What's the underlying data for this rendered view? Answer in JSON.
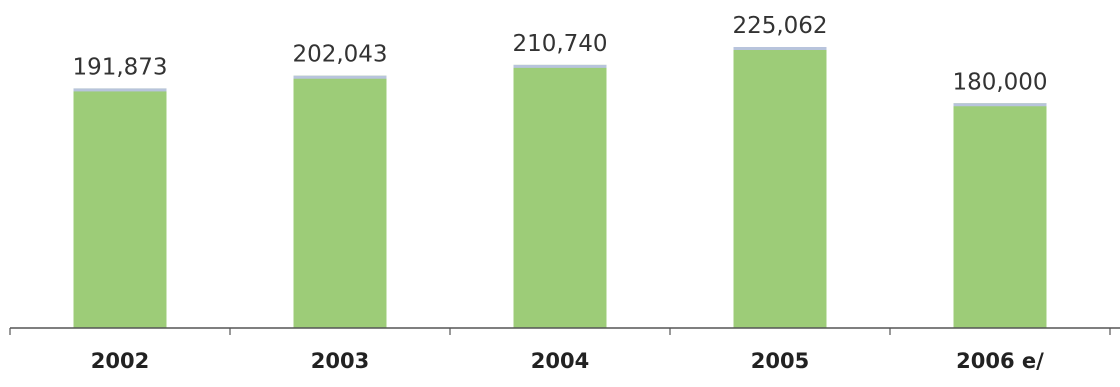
{
  "chart_data": {
    "type": "bar",
    "categories": [
      "2002",
      "2003",
      "2004",
      "2005",
      "2006 e/"
    ],
    "values": [
      191873,
      202043,
      210740,
      225062,
      180000
    ],
    "data_labels": [
      "191,873",
      "202,043",
      "210,740",
      "225,062",
      "180,000"
    ],
    "title": "",
    "xlabel": "",
    "ylabel": "",
    "ylim": [
      0,
      235000
    ],
    "grid": false,
    "legend": "none",
    "colors": {
      "bar_fill": "#9dcc78",
      "bar_top": "#b8c4dc",
      "axis": "#555555",
      "text": "#333333"
    }
  }
}
